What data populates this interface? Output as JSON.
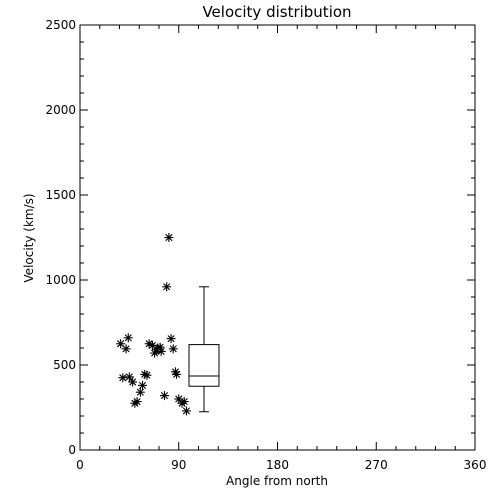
{
  "chart_data": {
    "type": "scatter",
    "title": "Velocity distribution",
    "xlabel": "Angle from north",
    "ylabel": "Velocity (km/s)",
    "xlim": [
      0,
      360
    ],
    "ylim": [
      0,
      2500
    ],
    "xticks": [
      0,
      90,
      180,
      270,
      360
    ],
    "xtick_labels": [
      "0",
      "90",
      "180",
      "270",
      "360"
    ],
    "yticks": [
      0,
      500,
      1000,
      1500,
      2000,
      2500
    ],
    "ytick_labels": [
      "0",
      "500",
      "1000",
      "1500",
      "2000",
      "2500"
    ],
    "grid": false,
    "series": [
      {
        "marker": "asterisk",
        "points": [
          {
            "x": 37,
            "y": 625
          },
          {
            "x": 39,
            "y": 425
          },
          {
            "x": 42,
            "y": 595
          },
          {
            "x": 44,
            "y": 660
          },
          {
            "x": 45,
            "y": 430
          },
          {
            "x": 48,
            "y": 400
          },
          {
            "x": 50,
            "y": 275
          },
          {
            "x": 52,
            "y": 285
          },
          {
            "x": 55,
            "y": 340
          },
          {
            "x": 57,
            "y": 380
          },
          {
            "x": 59,
            "y": 445
          },
          {
            "x": 61,
            "y": 440
          },
          {
            "x": 63,
            "y": 625
          },
          {
            "x": 66,
            "y": 615
          },
          {
            "x": 68,
            "y": 570
          },
          {
            "x": 70,
            "y": 590
          },
          {
            "x": 71,
            "y": 600
          },
          {
            "x": 73,
            "y": 605
          },
          {
            "x": 74,
            "y": 580
          },
          {
            "x": 77,
            "y": 320
          },
          {
            "x": 79,
            "y": 960
          },
          {
            "x": 81,
            "y": 1250
          },
          {
            "x": 83,
            "y": 655
          },
          {
            "x": 85,
            "y": 595
          },
          {
            "x": 87,
            "y": 460
          },
          {
            "x": 88,
            "y": 445
          },
          {
            "x": 90,
            "y": 300
          },
          {
            "x": 93,
            "y": 275
          },
          {
            "x": 95,
            "y": 285
          },
          {
            "x": 97,
            "y": 230
          }
        ]
      }
    ],
    "boxplot": {
      "x": 113,
      "whisker_low": 225,
      "q1": 375,
      "median": 435,
      "q3": 620,
      "whisker_high": 960
    }
  }
}
